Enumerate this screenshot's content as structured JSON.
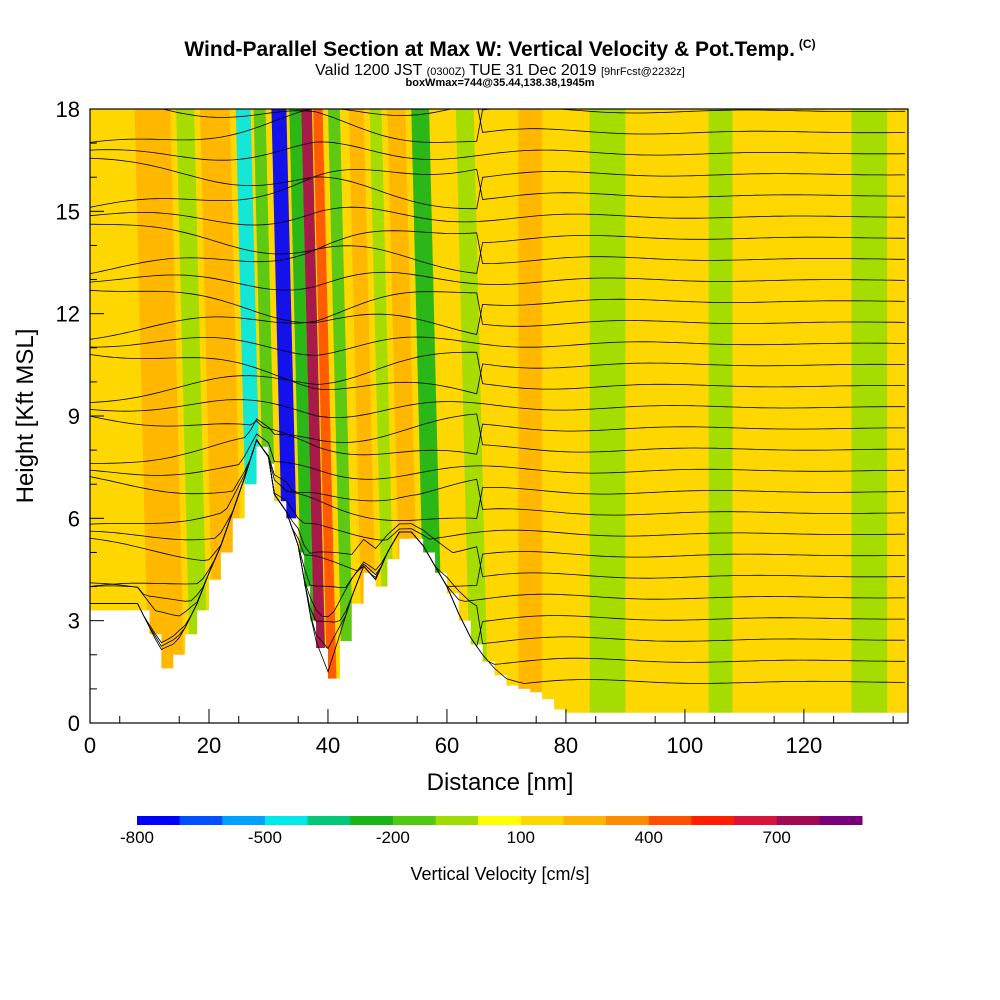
{
  "title": {
    "main": "Wind-Parallel Section at Max W: Vertical Velocity & Pot.Temp.",
    "copyright": "(C)",
    "valid_prefix": "Valid 1200 JST",
    "valid_utc": "(0300Z)",
    "valid_date": "TUE 31 Dec 2019",
    "forecast": "[9hrFcst@2232z]",
    "box_info": "boxWmax=744@35.44,138.38,1945m"
  },
  "chart_data": {
    "type": "heatmap",
    "xlabel": "Distance [nm]",
    "ylabel": "Height [Kft MSL]",
    "xlim": [
      0,
      137.5
    ],
    "ylim": [
      0,
      18
    ],
    "x_ticks": [
      0,
      20,
      40,
      60,
      80,
      100,
      120
    ],
    "y_ticks": [
      0,
      3,
      6,
      9,
      12,
      15,
      18
    ],
    "colorbar": {
      "label": "Vertical Velocity [cm/s]",
      "tick_labels": [
        -800,
        -500,
        -200,
        100,
        400,
        700
      ],
      "colors": [
        "#0000ff",
        "#0050ff",
        "#00a0ff",
        "#00e8e8",
        "#00c878",
        "#1ab41a",
        "#50c814",
        "#a0dc00",
        "#ffff00",
        "#ffd700",
        "#ffb400",
        "#ff8c00",
        "#ff5000",
        "#ff1e00",
        "#d7143c",
        "#a00a50",
        "#780078"
      ]
    },
    "terrain_kft": [
      {
        "x": 0,
        "y": 3.3
      },
      {
        "x": 8,
        "y": 3.3
      },
      {
        "x": 10,
        "y": 2.6
      },
      {
        "x": 12,
        "y": 1.6
      },
      {
        "x": 14,
        "y": 2.0
      },
      {
        "x": 16,
        "y": 2.6
      },
      {
        "x": 18,
        "y": 3.3
      },
      {
        "x": 20,
        "y": 4.2
      },
      {
        "x": 22,
        "y": 5.0
      },
      {
        "x": 24,
        "y": 6.0
      },
      {
        "x": 26,
        "y": 7.0
      },
      {
        "x": 28,
        "y": 8.1
      },
      {
        "x": 30,
        "y": 7.6
      },
      {
        "x": 31,
        "y": 6.5
      },
      {
        "x": 33,
        "y": 6.0
      },
      {
        "x": 35,
        "y": 5.0
      },
      {
        "x": 36,
        "y": 4.0
      },
      {
        "x": 37,
        "y": 3.0
      },
      {
        "x": 38,
        "y": 2.2
      },
      {
        "x": 40,
        "y": 1.3
      },
      {
        "x": 42,
        "y": 2.4
      },
      {
        "x": 44,
        "y": 3.5
      },
      {
        "x": 46,
        "y": 4.4
      },
      {
        "x": 48,
        "y": 4.0
      },
      {
        "x": 50,
        "y": 4.8
      },
      {
        "x": 52,
        "y": 5.4
      },
      {
        "x": 54,
        "y": 5.4
      },
      {
        "x": 56,
        "y": 5.0
      },
      {
        "x": 58,
        "y": 4.4
      },
      {
        "x": 60,
        "y": 3.8
      },
      {
        "x": 62,
        "y": 3.0
      },
      {
        "x": 64,
        "y": 2.3
      },
      {
        "x": 66,
        "y": 1.8
      },
      {
        "x": 68,
        "y": 1.4
      },
      {
        "x": 70,
        "y": 1.1
      },
      {
        "x": 72,
        "y": 1.0
      },
      {
        "x": 74,
        "y": 0.9
      },
      {
        "x": 76,
        "y": 0.7
      },
      {
        "x": 78,
        "y": 0.4
      },
      {
        "x": 80,
        "y": 0.3
      },
      {
        "x": 85,
        "y": 0.3
      },
      {
        "x": 137.5,
        "y": 0.3
      }
    ],
    "vv_bands": [
      {
        "x": 6,
        "w": 3,
        "value": 100
      },
      {
        "x": 10,
        "w": 6,
        "value": 200
      },
      {
        "x": 17,
        "w": 3,
        "value": -100
      },
      {
        "x": 21,
        "w": 5,
        "value": 200
      },
      {
        "x": 27,
        "w": 2.5,
        "value": -500
      },
      {
        "x": 30,
        "w": 2,
        "value": -200
      },
      {
        "x": 33,
        "w": 2.5,
        "value": -800
      },
      {
        "x": 36,
        "w": 2,
        "value": -300
      },
      {
        "x": 38,
        "w": 1.8,
        "value": 700
      },
      {
        "x": 40,
        "w": 1.6,
        "value": 400
      },
      {
        "x": 42.5,
        "w": 2,
        "value": -200
      },
      {
        "x": 46,
        "w": 2.5,
        "value": 200
      },
      {
        "x": 49.5,
        "w": 2,
        "value": -100
      },
      {
        "x": 52.5,
        "w": 3,
        "value": 200
      },
      {
        "x": 56.5,
        "w": 3,
        "value": -300
      },
      {
        "x": 60,
        "w": 2.5,
        "value": 100
      },
      {
        "x": 64,
        "w": 3,
        "value": -100
      },
      {
        "x": 72,
        "w": 4,
        "value": 200
      },
      {
        "x": 84,
        "w": 6,
        "value": -100
      },
      {
        "x": 104,
        "w": 4,
        "value": -100
      },
      {
        "x": 128,
        "w": 6,
        "value": -100
      }
    ]
  }
}
